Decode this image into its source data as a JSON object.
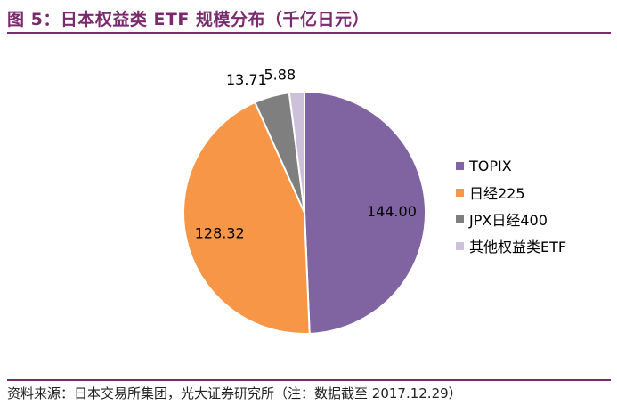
{
  "figure": {
    "title": "图 5：日本权益类 ETF 规模分布（千亿日元）",
    "source": "资料来源：日本交易所集团，光大证券研究所（注：数据截至 2017.12.29）"
  },
  "chart_data": {
    "type": "pie",
    "title": "",
    "unit": "千亿日元",
    "legend_position": "right",
    "slices": [
      {
        "label": "TOPIX",
        "value": 144.0,
        "display": "144.00",
        "color": "#8064a2"
      },
      {
        "label": "日经225",
        "value": 128.32,
        "display": "128.32",
        "color": "#f79646"
      },
      {
        "label": "JPX日经400",
        "value": 13.71,
        "display": "13.71",
        "color": "#7f7f7f"
      },
      {
        "label": "其他权益类ETF",
        "value": 5.88,
        "display": "5.88",
        "color": "#ccc0da"
      }
    ]
  }
}
